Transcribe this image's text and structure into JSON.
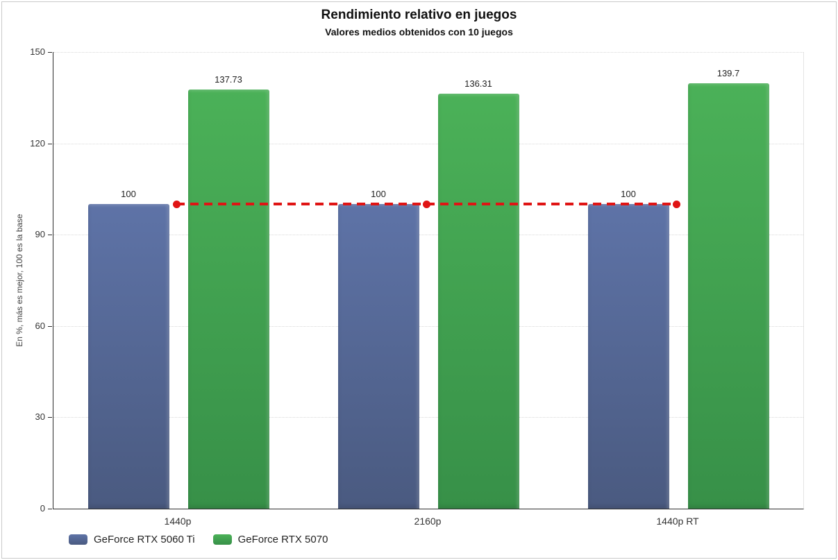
{
  "header": {
    "title": "Rendimiento relativo en juegos",
    "subtitle": "Valores medios obtenidos con 10 juegos"
  },
  "chart_data": {
    "type": "bar",
    "title": "Rendimiento relativo en juegos",
    "subtitle": "Valores medios obtenidos con 10 juegos",
    "categories": [
      "1440p",
      "2160p",
      "1440p RT"
    ],
    "series": [
      {
        "name": "GeForce RTX 5060 Ti",
        "values": [
          100,
          100,
          100
        ],
        "value_labels": [
          "100",
          "100",
          "100"
        ],
        "color": "#57699c",
        "color_top": "#5e73a7",
        "color_bottom": "#4a5a80"
      },
      {
        "name": "GeForce RTX 5070",
        "values": [
          137.73,
          136.31,
          139.7
        ],
        "value_labels": [
          "137.73",
          "136.31",
          "139.7"
        ],
        "color": "#3f9d4d",
        "color_top": "#4bb158",
        "color_bottom": "#379048"
      }
    ],
    "xlabel": "",
    "ylabel": "En %, más es mejor, 100 es la base",
    "ylim": [
      0,
      150
    ],
    "yticks": [
      0,
      30,
      60,
      90,
      120,
      150
    ],
    "grid": "horizontal-dotted",
    "legend_position": "bottom-left",
    "baseline": {
      "value": 100,
      "color": "#e01414",
      "style": "dashed",
      "markers": true
    }
  }
}
